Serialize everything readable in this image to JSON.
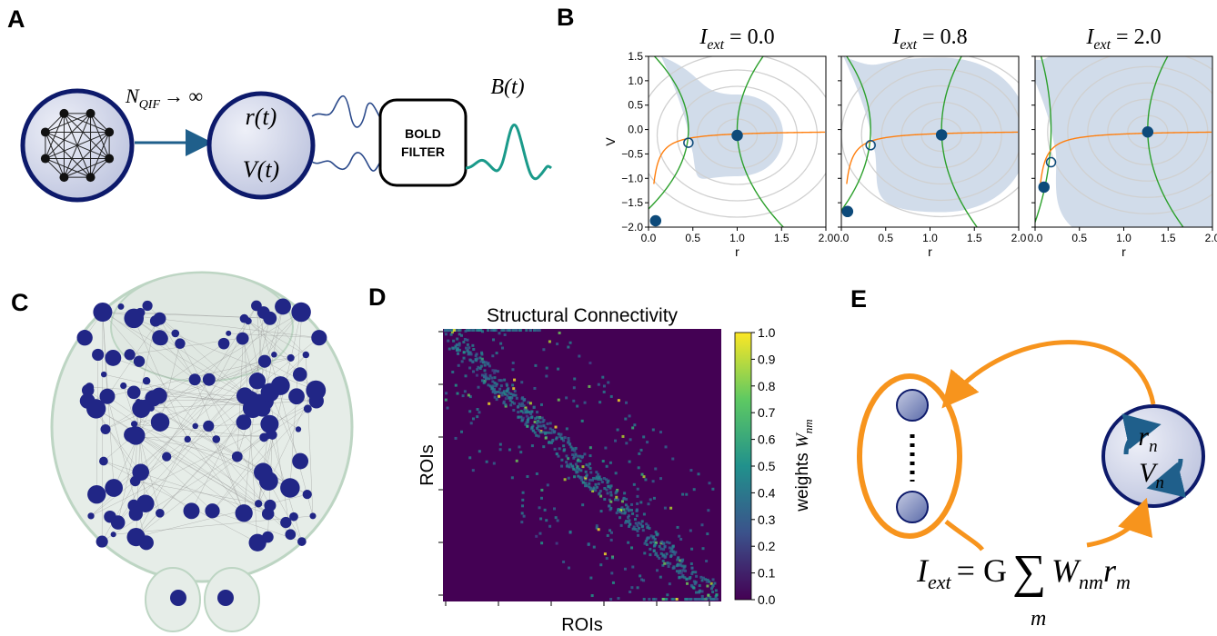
{
  "panel_labels": [
    "A",
    "B",
    "C",
    "D",
    "E"
  ],
  "panel_a": {
    "n_label": "N",
    "n_sub": "QIF",
    "arrow_text": "→ ∞",
    "r_label": "r(t)",
    "v_label": "V(t)",
    "filter_label": [
      "BOLD",
      "FILTER"
    ],
    "b_label": "B(t)"
  },
  "panel_b": {
    "ylabel": "V",
    "xlabel": "r",
    "xlim": [
      0,
      2
    ],
    "ylim": [
      -2,
      1.5
    ],
    "xticks": [
      {
        "value": 0,
        "label": "0.0"
      },
      0.5,
      {
        "value": 1,
        "label": "1.0"
      },
      1.5,
      {
        "value": 2,
        "label": "2.0"
      }
    ],
    "yticks": [
      1.5,
      {
        "value": 1,
        "label": "1.0"
      },
      0.5,
      {
        "value": 0,
        "label": "0.0"
      },
      {
        "value": -0.5,
        "label": "−0.5"
      },
      {
        "value": -1,
        "label": "−1.0"
      },
      {
        "value": -1.5,
        "label": "−1.5"
      },
      {
        "value": -2,
        "label": "−2.0"
      }
    ],
    "plots": [
      {
        "title_var": "I",
        "title_sub": "ext",
        "title_value": "= 0.0",
        "fixed_points": [
          {
            "r": 0.08,
            "v": -1.87,
            "stable": true
          },
          {
            "r": 0.45,
            "v": -0.27,
            "stable": false
          },
          {
            "r": 1.0,
            "v": -0.12,
            "stable": true
          }
        ]
      },
      {
        "title_var": "I",
        "title_sub": "ext",
        "title_value": "= 0.8",
        "fixed_points": [
          {
            "r": 0.07,
            "v": -1.68,
            "stable": true
          },
          {
            "r": 0.33,
            "v": -0.32,
            "stable": false
          },
          {
            "r": 1.13,
            "v": -0.11,
            "stable": true
          }
        ]
      },
      {
        "title_var": "I",
        "title_sub": "ext",
        "title_value": "= 2.0",
        "fixed_points": [
          {
            "r": 0.1,
            "v": -1.18,
            "stable": true
          },
          {
            "r": 0.18,
            "v": -0.67,
            "stable": false
          },
          {
            "r": 1.27,
            "v": -0.05,
            "stable": true
          }
        ]
      }
    ]
  },
  "panel_d": {
    "title": "Structural Connectivity",
    "xlabel": "ROIs",
    "ylabel": "ROIs",
    "colorbar_label": "weights",
    "colorbar_var": "W",
    "colorbar_sub": "nm",
    "colorbar_lim": [
      0,
      1
    ],
    "colorbar_ticks": [
      {
        "value": 0,
        "label": "0.0"
      },
      0.1,
      0.2,
      0.3,
      0.4,
      0.5,
      0.6,
      0.7,
      0.8,
      0.9,
      {
        "value": 1,
        "label": "1.0"
      }
    ]
  },
  "panel_e": {
    "node_var": "r",
    "node_var_sub": "n",
    "node_var2": "V",
    "node_var2_sub": "n",
    "eq_lhs": "I",
    "eq_lhs_sub": "ext",
    "eq_mid": "= G",
    "eq_sum": "∑",
    "eq_sum_sub": "m",
    "eq_w": "W",
    "eq_w_sub": "nm",
    "eq_r": "r",
    "eq_r_sub": "m"
  }
}
